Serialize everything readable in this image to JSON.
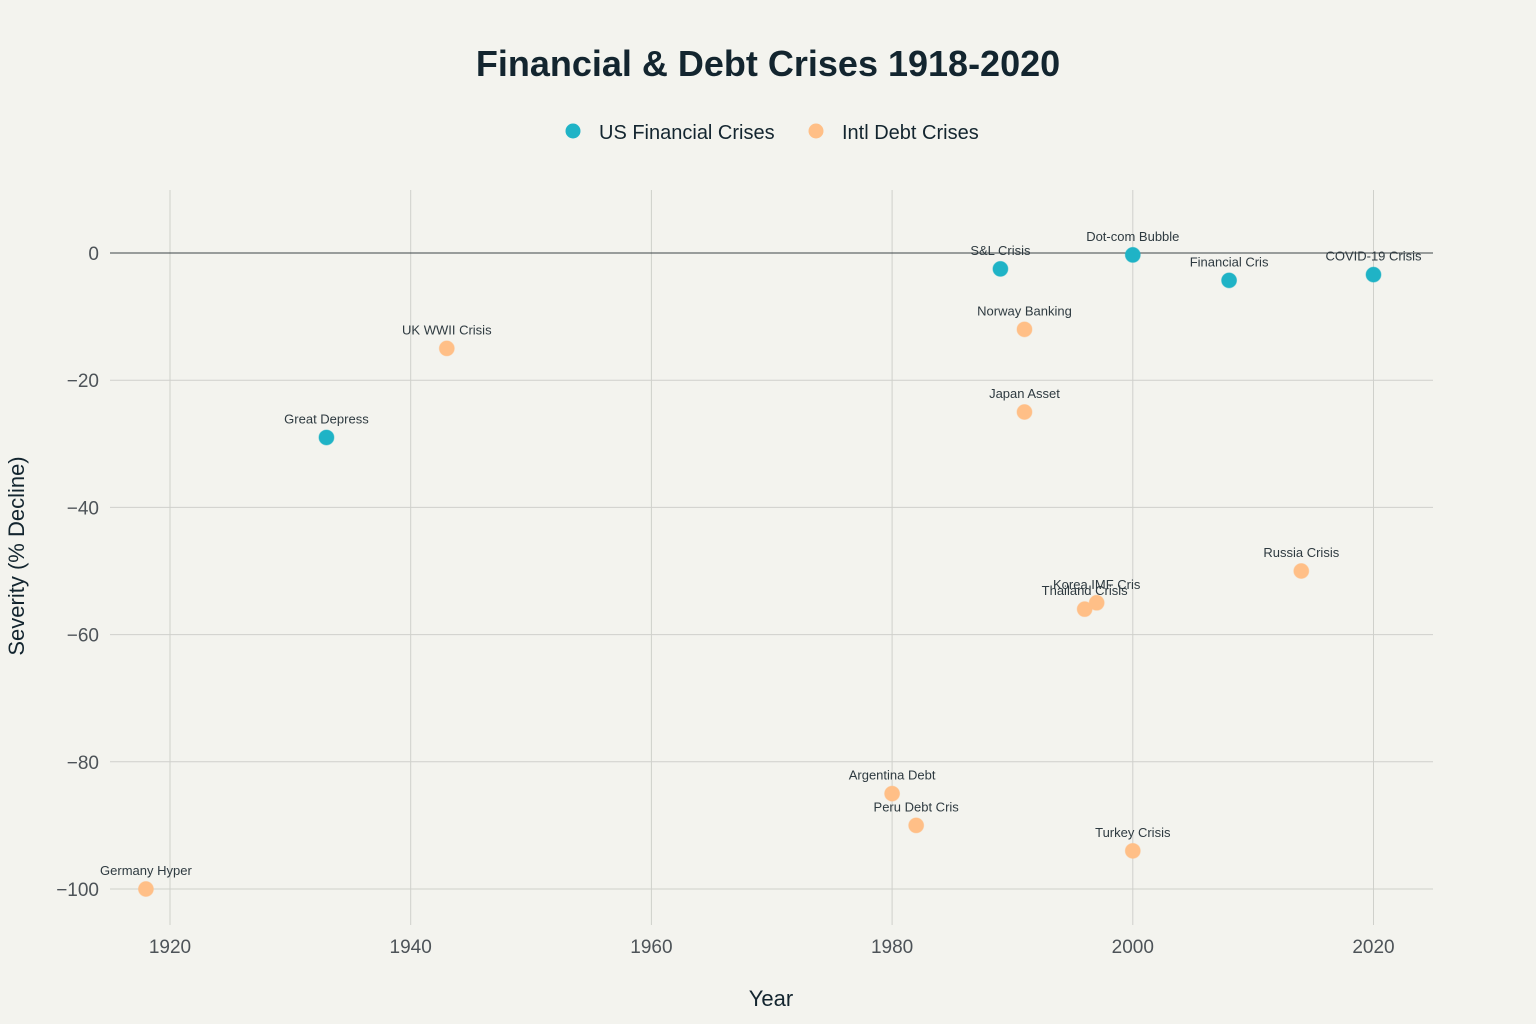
{
  "chart_data": {
    "type": "scatter",
    "title": "Financial & Debt Crises 1918-2020",
    "xlabel": "Year",
    "ylabel": "Severity (% Decline)",
    "xlim": [
      1913,
      2025
    ],
    "ylim": [
      -106,
      10
    ],
    "xticks": [
      1920,
      1940,
      1960,
      1980,
      2000,
      2020
    ],
    "yticks": [
      0,
      -20,
      -40,
      -60,
      -80,
      -100
    ],
    "ytick_labels": [
      "0",
      "−20",
      "−40",
      "−60",
      "−80",
      "−100"
    ],
    "grid": true,
    "legend_position": "top-center",
    "series": [
      {
        "name": "US Financial Crises",
        "color": "#1fb3c6",
        "points": [
          {
            "x": 1933,
            "y": -29,
            "label": "Great Depress"
          },
          {
            "x": 1989,
            "y": -2.5,
            "label": "S&L Crisis"
          },
          {
            "x": 2000,
            "y": -0.3,
            "label": "Dot-com Bubble"
          },
          {
            "x": 2008,
            "y": -4.3,
            "label": "Financial Cris"
          },
          {
            "x": 2020,
            "y": -3.4,
            "label": "COVID-19 Crisis"
          }
        ]
      },
      {
        "name": "Intl Debt Crises",
        "color": "#ffbf87",
        "points": [
          {
            "x": 1918,
            "y": -100,
            "label": "Germany Hyper"
          },
          {
            "x": 1943,
            "y": -15,
            "label": "UK WWII Crisis"
          },
          {
            "x": 1980,
            "y": -85,
            "label": "Argentina Debt"
          },
          {
            "x": 1982,
            "y": -90,
            "label": "Peru Debt Cris"
          },
          {
            "x": 1991,
            "y": -12,
            "label": "Norway Banking"
          },
          {
            "x": 1991,
            "y": -25,
            "label": "Japan Asset"
          },
          {
            "x": 1996,
            "y": -56,
            "label": "Thailand Crisis"
          },
          {
            "x": 1997,
            "y": -55,
            "label": "Korea IMF Cris"
          },
          {
            "x": 2000,
            "y": -94,
            "label": "Turkey Crisis"
          },
          {
            "x": 2014,
            "y": -50,
            "label": "Russia Crisis"
          }
        ]
      }
    ]
  }
}
